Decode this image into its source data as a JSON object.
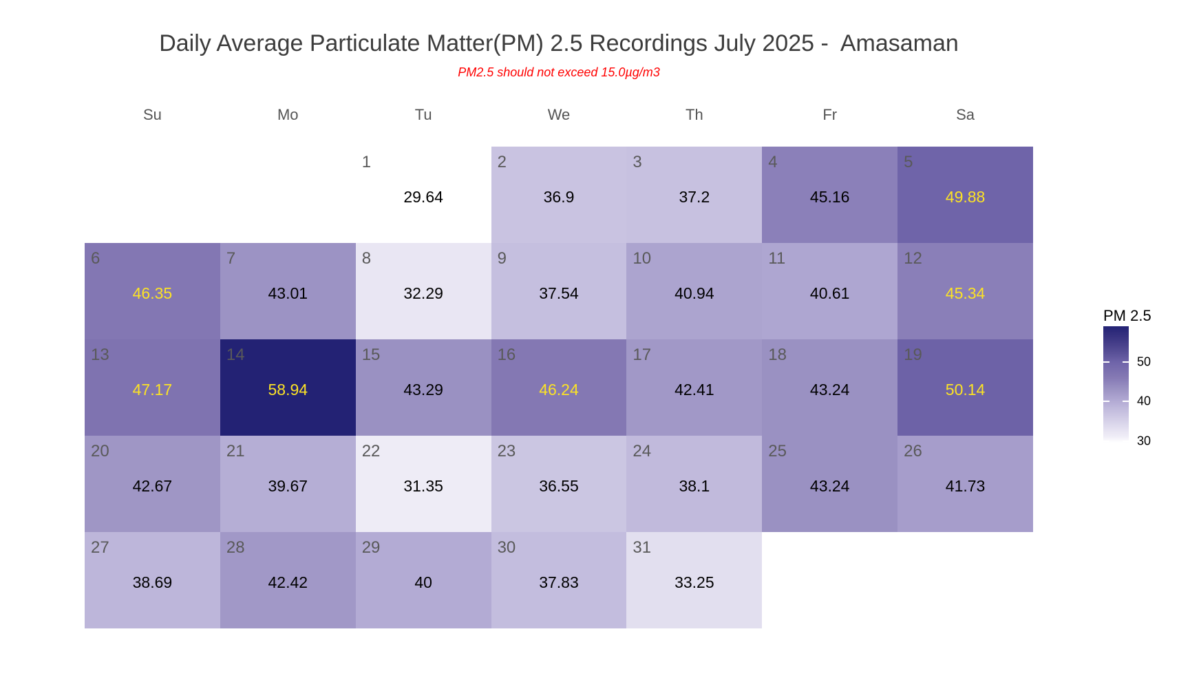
{
  "title": "Daily Average Particulate Matter(PM) 2.5 Recordings July 2025 -  Amasaman",
  "subtitle": "PM2.5 should not exceed 15.0µg/m3",
  "chart_data": {
    "type": "heatmap",
    "subtype": "calendar-month",
    "title": "Daily Average Particulate Matter(PM) 2.5 Recordings July 2025 -  Amasaman",
    "subtitle": "PM2.5 should not exceed 15.0µg/m3",
    "month": "July 2025",
    "location": "Amasaman",
    "unit": "µg/m3",
    "weekday_labels": [
      "Su",
      "Mo",
      "Tu",
      "We",
      "Th",
      "Fr",
      "Sa"
    ],
    "first_day_weekday_index": 2,
    "days": [
      {
        "day": 1,
        "value": 29.64,
        "label": "29.64"
      },
      {
        "day": 2,
        "value": 36.9,
        "label": "36.9"
      },
      {
        "day": 3,
        "value": 37.2,
        "label": "37.2"
      },
      {
        "day": 4,
        "value": 45.16,
        "label": "45.16"
      },
      {
        "day": 5,
        "value": 49.88,
        "label": "49.88"
      },
      {
        "day": 6,
        "value": 46.35,
        "label": "46.35"
      },
      {
        "day": 7,
        "value": 43.01,
        "label": "43.01"
      },
      {
        "day": 8,
        "value": 32.29,
        "label": "32.29"
      },
      {
        "day": 9,
        "value": 37.54,
        "label": "37.54"
      },
      {
        "day": 10,
        "value": 40.94,
        "label": "40.94"
      },
      {
        "day": 11,
        "value": 40.61,
        "label": "40.61"
      },
      {
        "day": 12,
        "value": 45.34,
        "label": "45.34"
      },
      {
        "day": 13,
        "value": 47.17,
        "label": "47.17"
      },
      {
        "day": 14,
        "value": 58.94,
        "label": "58.94"
      },
      {
        "day": 15,
        "value": 43.29,
        "label": "43.29"
      },
      {
        "day": 16,
        "value": 46.24,
        "label": "46.24"
      },
      {
        "day": 17,
        "value": 42.41,
        "label": "42.41"
      },
      {
        "day": 18,
        "value": 43.24,
        "label": "43.24"
      },
      {
        "day": 19,
        "value": 50.14,
        "label": "50.14"
      },
      {
        "day": 20,
        "value": 42.67,
        "label": "42.67"
      },
      {
        "day": 21,
        "value": 39.67,
        "label": "39.67"
      },
      {
        "day": 22,
        "value": 31.35,
        "label": "31.35"
      },
      {
        "day": 23,
        "value": 36.55,
        "label": "36.55"
      },
      {
        "day": 24,
        "value": 38.1,
        "label": "38.1"
      },
      {
        "day": 25,
        "value": 43.24,
        "label": "43.24"
      },
      {
        "day": 26,
        "value": 41.73,
        "label": "41.73"
      },
      {
        "day": 27,
        "value": 38.69,
        "label": "38.69"
      },
      {
        "day": 28,
        "value": 42.42,
        "label": "42.42"
      },
      {
        "day": 29,
        "value": 40,
        "label": "40"
      },
      {
        "day": 30,
        "value": 37.83,
        "label": "37.83"
      },
      {
        "day": 31,
        "value": 33.25,
        "label": "33.25"
      }
    ],
    "legend": {
      "title": "PM 2.5",
      "tick_labels": [
        "50",
        "40",
        "30"
      ],
      "tick_values": [
        50,
        40,
        30
      ],
      "domain_min": 29.64,
      "domain_max": 58.94,
      "position": "right"
    },
    "colors": {
      "title_color": "#3c3c3c",
      "subtitle_color": "#ff0000",
      "weekday_label_color": "#545454",
      "day_number_color": "#595959",
      "value_text_default": "#000000",
      "value_text_high": "#fce325",
      "high_text_threshold": 45.2,
      "fill_stops": [
        [
          29.64,
          "#ffffff"
        ],
        [
          31.35,
          "#eeecf6"
        ],
        [
          32.29,
          "#e9e6f3"
        ],
        [
          36.9,
          "#c9c3e1"
        ],
        [
          37.54,
          "#c5bfdf"
        ],
        [
          40.0,
          "#b3abd4"
        ],
        [
          43.29,
          "#9a91c2"
        ],
        [
          45.16,
          "#8b80b9"
        ],
        [
          46.24,
          "#8478b3"
        ],
        [
          49.88,
          "#6f64a9"
        ],
        [
          52.0,
          "#5b5299"
        ],
        [
          55.0,
          "#423b87"
        ],
        [
          58.94,
          "#232274"
        ]
      ]
    }
  }
}
